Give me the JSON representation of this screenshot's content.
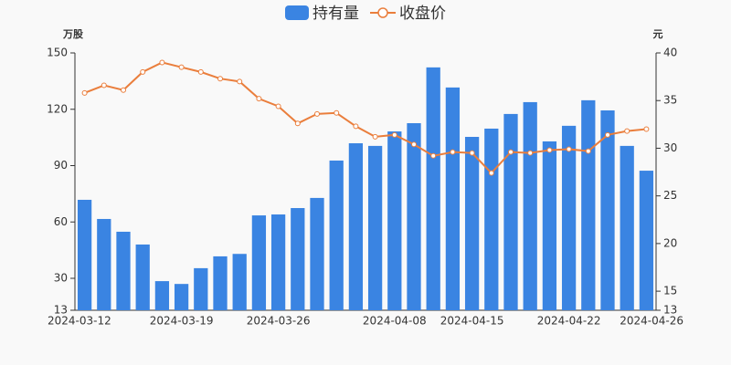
{
  "chart_data": {
    "type": "bar-line",
    "legend": "top",
    "y_label": "万股",
    "y2_label": "元",
    "categories": [
      "2024-03-12",
      null,
      null,
      null,
      null,
      "2024-03-19",
      null,
      null,
      null,
      null,
      "2024-03-26",
      null,
      null,
      null,
      null,
      null,
      "2024-04-08",
      null,
      null,
      null,
      "2024-04-15",
      null,
      null,
      null,
      null,
      "2024-04-22",
      null,
      null,
      null,
      "2024-04-26"
    ],
    "series": [
      {
        "name": "持有量",
        "type": "bar",
        "color": "#3a84e2",
        "values": [
          71.8,
          61.6,
          54.8,
          48,
          28.5,
          27,
          35.4,
          41.7,
          43,
          63.5,
          64,
          67.4,
          72.8,
          92.7,
          101.9,
          100.5,
          108.2,
          112.6,
          142.3,
          131.6,
          105.3,
          109.7,
          117.5,
          123.8,
          102.9,
          111.2,
          124.8,
          119.4,
          100.5,
          87.3
        ]
      },
      {
        "name": "收盘价",
        "type": "line",
        "axis": "y2",
        "color": "#ea7e3c",
        "values": [
          35.8,
          36.6,
          36.1,
          38.0,
          39.0,
          38.5,
          38.0,
          37.3,
          37.0,
          35.2,
          34.4,
          32.6,
          33.6,
          33.7,
          32.3,
          31.2,
          31.4,
          30.4,
          29.2,
          29.6,
          29.5,
          27.4,
          29.6,
          29.5,
          29.8,
          29.9,
          29.7,
          31.4,
          31.8,
          32.0
        ]
      }
    ],
    "ylim": [
      13,
      150
    ],
    "yticks": [
      13,
      30,
      60,
      90,
      120,
      150
    ],
    "y2lim": [
      13,
      40
    ],
    "y2ticks": [
      13,
      15,
      20,
      25,
      30,
      35,
      40
    ]
  }
}
